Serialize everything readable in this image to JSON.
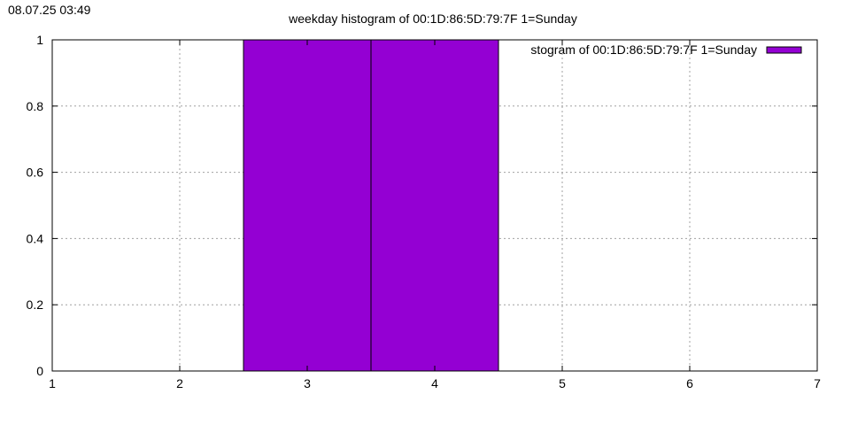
{
  "timestamp": "08.07.25 03:49",
  "chart_data": {
    "type": "bar",
    "title": "weekday histogram of 00:1D:86:5D:79:7F 1=Sunday",
    "legend": {
      "label": "stogram of 00:1D:86:5D:79:7F 1=Sunday",
      "placement": "top-right"
    },
    "series": [
      {
        "name": "stogram of 00:1D:86:5D:79:7F 1=Sunday",
        "color": "#9400d3",
        "points": [
          {
            "x": 3,
            "y": 1
          },
          {
            "x": 4,
            "y": 1
          }
        ],
        "bar_width": 1
      }
    ],
    "xlim": [
      1,
      7
    ],
    "ylim": [
      0,
      1
    ],
    "xticks": [
      "1",
      "2",
      "3",
      "4",
      "5",
      "6",
      "7"
    ],
    "yticks": [
      "0",
      "0.2",
      "0.4",
      "0.6",
      "0.8",
      "1"
    ],
    "xlabel": "",
    "ylabel": "",
    "grid": true
  }
}
